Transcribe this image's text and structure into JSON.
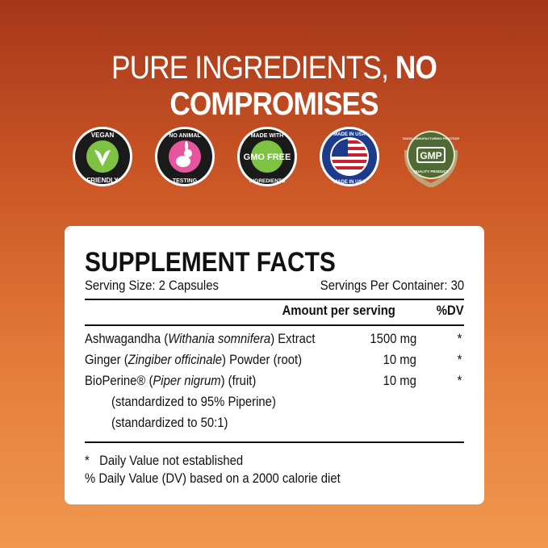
{
  "headline": {
    "regular": "PURE INGREDIENTS, ",
    "bold": "NO COMPROMISES"
  },
  "badges": [
    {
      "top": "VEGAN",
      "bottom": "FRIENDLY",
      "icon": "leaf-icon",
      "color": "#7dc242"
    },
    {
      "top": "NO ANIMAL",
      "bottom": "TESTING",
      "icon": "rabbit-icon",
      "color": "#e8559f"
    },
    {
      "top": "MADE WITH",
      "center": "GMO FREE",
      "bottom": "INGREDIENTS",
      "icon": "gmo-free-icon",
      "color": "#7dc242"
    },
    {
      "top": "MADE IN USA",
      "bottom": "MADE IN USA",
      "icon": "us-flag-icon",
      "color": "#1e3a8a"
    },
    {
      "top": "GOOD MANUFACTURING PRACTICE",
      "center": "GMP",
      "bottom": "QUALITY PRODUCT",
      "icon": "gmp-seal-icon",
      "color": "#4e6b34"
    }
  ],
  "facts": {
    "title": "SUPPLEMENT FACTS",
    "serving_size": "Serving Size: 2 Capsules",
    "servings_per_container": "Servings Per Container: 30",
    "amount_header": "Amount per serving",
    "dv_header": "%DV",
    "rows": [
      {
        "name": "Ashwagandha (",
        "latin": "Withania somnifera",
        "rest": ") Extract",
        "amount": "1500 mg",
        "dv": "*"
      },
      {
        "name": "Ginger (",
        "latin": "Zingiber officinale",
        "rest": ") Powder (root)",
        "amount": "10 mg",
        "dv": "*"
      },
      {
        "name": "BioPerine® (",
        "latin": "Piper nigrum",
        "rest": ") (fruit)",
        "amount": "10 mg",
        "dv": "*"
      }
    ],
    "sub_notes": [
      "(standardized to 95% Piperine)",
      "(standardized to 50:1)"
    ],
    "footnotes": [
      "*   Daily Value not established",
      "% Daily Value (DV) based on a 2000 calorie diet"
    ]
  }
}
